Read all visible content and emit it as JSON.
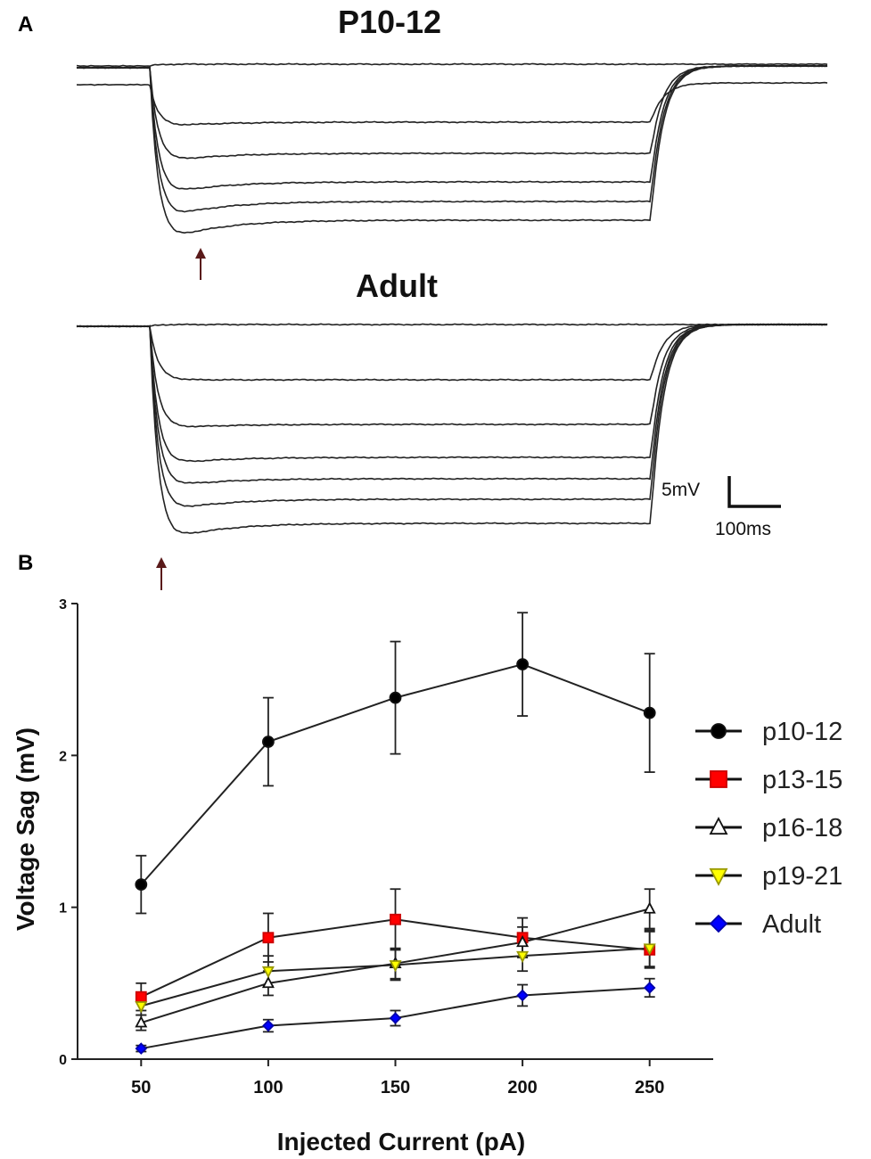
{
  "panel_labels": {
    "a": "A",
    "b": "B"
  },
  "traces": {
    "top_title": "P10-12",
    "bottom_title": "Adult",
    "scale_bar": {
      "voltage": "5mV",
      "time": "100ms"
    }
  },
  "colors": {
    "p10_12": "#000000",
    "p13_15": "#ff0000",
    "p16_18": "#ffffff",
    "p19_21": "#ffff00",
    "adult": "#0000ff",
    "line": "#222222"
  },
  "chart_data": {
    "type": "line",
    "title": "",
    "xlabel": "Injected Current (pA)",
    "ylabel": "Voltage Sag (mV)",
    "x": [
      50,
      100,
      150,
      200,
      250
    ],
    "x_tick_labels": [
      "50",
      "100",
      "150",
      "200",
      "250"
    ],
    "xlim": [
      25,
      275
    ],
    "ylim": [
      0,
      3
    ],
    "y_tick_labels": [
      "0",
      "1",
      "2",
      "3"
    ],
    "legend_position": "right",
    "series": [
      {
        "name": "p10-12",
        "marker": "circle",
        "color": "#000000",
        "values": [
          1.15,
          2.09,
          2.38,
          2.6,
          2.28
        ],
        "errors": [
          0.19,
          0.29,
          0.37,
          0.34,
          0.39
        ]
      },
      {
        "name": "p13-15",
        "marker": "square",
        "color": "#ff0000",
        "values": [
          0.41,
          0.8,
          0.92,
          0.8,
          0.72
        ],
        "errors": [
          0.09,
          0.16,
          0.2,
          0.13,
          0.12
        ]
      },
      {
        "name": "p16-18",
        "marker": "triangle-up",
        "color": "#ffffff",
        "values": [
          0.24,
          0.5,
          0.63,
          0.77,
          0.99
        ],
        "errors": [
          0.05,
          0.08,
          0.1,
          0.1,
          0.13
        ]
      },
      {
        "name": "p19-21",
        "marker": "triangle-down",
        "color": "#ffff00",
        "values": [
          0.35,
          0.58,
          0.62,
          0.68,
          0.73
        ],
        "errors": [
          0.06,
          0.1,
          0.1,
          0.1,
          0.12
        ]
      },
      {
        "name": "Adult",
        "marker": "diamond",
        "color": "#0000ff",
        "values": [
          0.07,
          0.22,
          0.27,
          0.42,
          0.47
        ],
        "errors": [
          0.02,
          0.04,
          0.05,
          0.07,
          0.06
        ]
      }
    ]
  }
}
